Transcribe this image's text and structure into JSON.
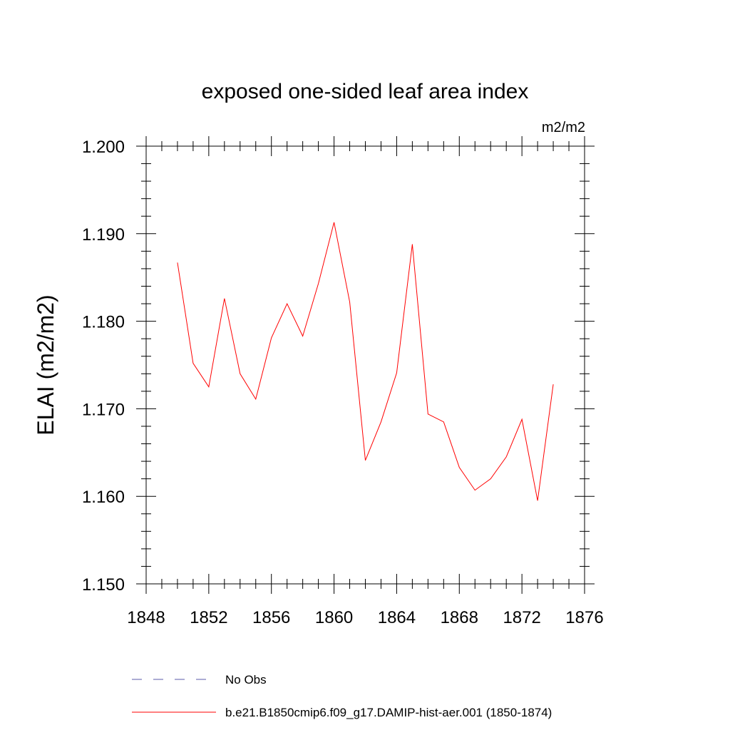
{
  "chart_data": {
    "type": "line",
    "title": "exposed one-sided leaf area index",
    "units_label": "m2/m2",
    "ylabel": "ELAI  (m2/m2)",
    "xlabel": "",
    "xlim": [
      1848,
      1876
    ],
    "ylim": [
      1.15,
      1.2
    ],
    "x_ticks": [
      1848,
      1852,
      1856,
      1860,
      1864,
      1868,
      1872,
      1876
    ],
    "y_ticks": [
      1.15,
      1.16,
      1.17,
      1.18,
      1.19,
      1.2
    ],
    "y_tick_labels": [
      "1.150",
      "1.160",
      "1.170",
      "1.180",
      "1.190",
      "1.200"
    ],
    "x_minor_step": 1,
    "y_minor_step": 0.002,
    "grid": false,
    "series": [
      {
        "name": "b.e21.B1850cmip6.f09_g17.DAMIP-hist-aer.001 (1850-1874)",
        "color": "#ff0000",
        "style": "solid",
        "x": [
          1850,
          1851,
          1852,
          1853,
          1854,
          1855,
          1856,
          1857,
          1858,
          1859,
          1860,
          1861,
          1862,
          1863,
          1864,
          1865,
          1866,
          1867,
          1868,
          1869,
          1870,
          1871,
          1872,
          1873,
          1874
        ],
        "y": [
          1.1867,
          1.1752,
          1.1725,
          1.1826,
          1.174,
          1.1711,
          1.1781,
          1.182,
          1.1783,
          1.1843,
          1.1913,
          1.1822,
          1.1641,
          1.1685,
          1.1741,
          1.1888,
          1.1694,
          1.1685,
          1.1633,
          1.1607,
          1.162,
          1.1645,
          1.1688,
          1.1595,
          1.1728
        ]
      }
    ],
    "legend": {
      "placement": "bottom",
      "entries": [
        {
          "label": "No Obs",
          "color": "#5a5aa8",
          "style": "dashed"
        },
        {
          "label": "b.e21.B1850cmip6.f09_g17.DAMIP-hist-aer.001 (1850-1874)",
          "color": "#ff0000",
          "style": "solid"
        }
      ]
    }
  }
}
